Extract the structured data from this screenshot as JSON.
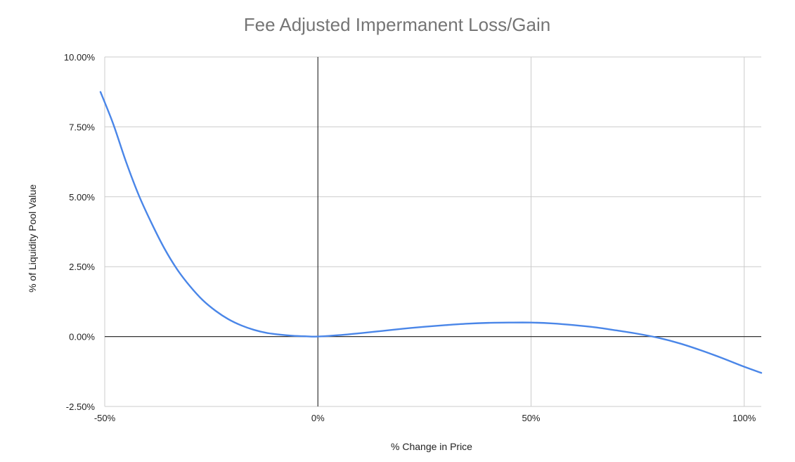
{
  "chart_data": {
    "type": "line",
    "title": "Fee Adjusted Impermanent Loss/Gain",
    "xlabel": "% Change in Price",
    "ylabel": "% of Liquidity Pool Value",
    "xlim": [
      -50,
      104
    ],
    "ylim": [
      -2.5,
      10
    ],
    "x_ticks": [
      {
        "value": -50,
        "label": "-50%"
      },
      {
        "value": 0,
        "label": "0%"
      },
      {
        "value": 50,
        "label": "50%"
      },
      {
        "value": 100,
        "label": "100%"
      }
    ],
    "y_ticks": [
      {
        "value": -2.5,
        "label": "-2.50%"
      },
      {
        "value": 0,
        "label": "0.00%"
      },
      {
        "value": 2.5,
        "label": "2.50%"
      },
      {
        "value": 5,
        "label": "5.00%"
      },
      {
        "value": 7.5,
        "label": "7.50%"
      },
      {
        "value": 10,
        "label": "10.00%"
      }
    ],
    "grid": true,
    "series": [
      {
        "color": "#4a86e8",
        "x": [
          -51,
          -48,
          -45,
          -42,
          -39,
          -36,
          -33,
          -30,
          -27,
          -24,
          -21,
          -18,
          -15,
          -12,
          -9,
          -6,
          -3,
          0,
          5,
          10,
          15,
          20,
          25,
          30,
          35,
          40,
          45,
          50,
          55,
          60,
          65,
          70,
          75,
          80,
          85,
          90,
          95,
          100,
          104
        ],
        "y": [
          8.75,
          7.6,
          6.25,
          5.05,
          4.05,
          3.15,
          2.4,
          1.8,
          1.3,
          0.92,
          0.62,
          0.4,
          0.24,
          0.13,
          0.07,
          0.03,
          0.01,
          0.0,
          0.05,
          0.12,
          0.2,
          0.28,
          0.35,
          0.41,
          0.46,
          0.49,
          0.5,
          0.5,
          0.47,
          0.41,
          0.33,
          0.22,
          0.1,
          -0.05,
          -0.25,
          -0.5,
          -0.78,
          -1.08,
          -1.3
        ]
      }
    ]
  }
}
